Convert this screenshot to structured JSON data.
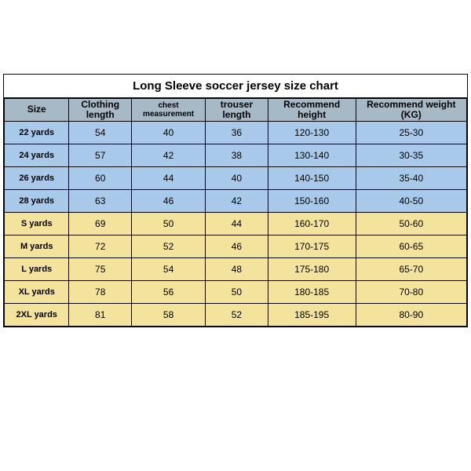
{
  "title": "Long Sleeve soccer jersey size chart",
  "columns": [
    {
      "label": "Size",
      "class": ""
    },
    {
      "label": "Clothing length",
      "class": ""
    },
    {
      "label": "chest measurement",
      "class": "small"
    },
    {
      "label": "trouser length",
      "class": ""
    },
    {
      "label": "Recommend height",
      "class": ""
    },
    {
      "label": "Recommend weight (KG)",
      "class": ""
    }
  ],
  "rows": [
    {
      "band": "blue",
      "cells": [
        "22 yards",
        "54",
        "40",
        "36",
        "120-130",
        "25-30"
      ]
    },
    {
      "band": "blue",
      "cells": [
        "24 yards",
        "57",
        "42",
        "38",
        "130-140",
        "30-35"
      ]
    },
    {
      "band": "blue",
      "cells": [
        "26 yards",
        "60",
        "44",
        "40",
        "140-150",
        "35-40"
      ]
    },
    {
      "band": "blue",
      "cells": [
        "28 yards",
        "63",
        "46",
        "42",
        "150-160",
        "40-50"
      ]
    },
    {
      "band": "yellow",
      "cells": [
        "S yards",
        "69",
        "50",
        "44",
        "160-170",
        "50-60"
      ]
    },
    {
      "band": "yellow",
      "cells": [
        "M yards",
        "72",
        "52",
        "46",
        "170-175",
        "60-65"
      ]
    },
    {
      "band": "yellow",
      "cells": [
        "L yards",
        "75",
        "54",
        "48",
        "175-180",
        "65-70"
      ]
    },
    {
      "band": "yellow",
      "cells": [
        "XL yards",
        "78",
        "56",
        "50",
        "180-185",
        "70-80"
      ]
    },
    {
      "band": "yellow",
      "cells": [
        "2XL yards",
        "81",
        "58",
        "52",
        "185-195",
        "80-90"
      ]
    }
  ],
  "colors": {
    "header_bg": "#a7b8c7",
    "blue_band": "#a8c9ea",
    "yellow_band": "#f4e39c",
    "border": "#000000",
    "page_bg": "#ffffff"
  }
}
